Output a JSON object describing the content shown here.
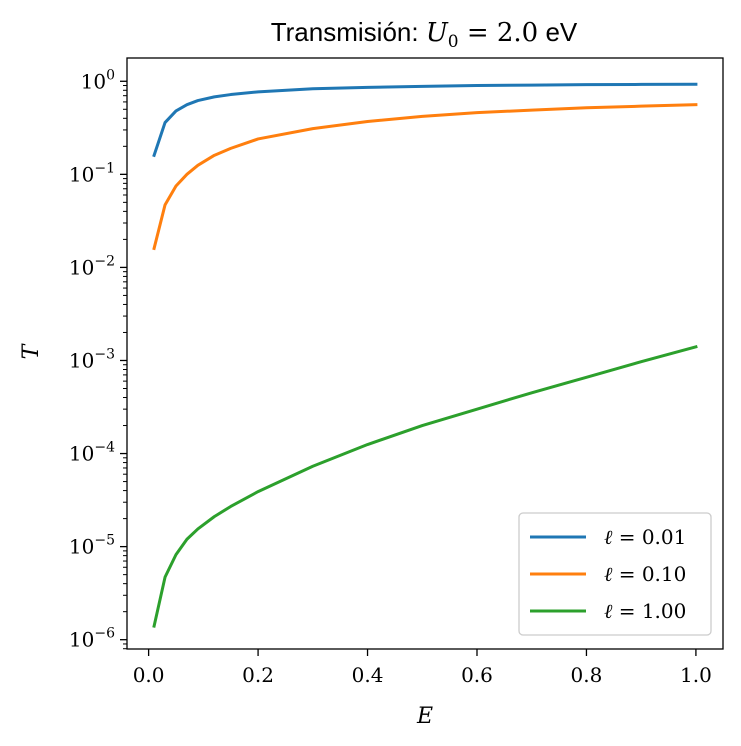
{
  "chart_data": {
    "type": "line",
    "title_prefix": "Transmisión: ",
    "title_symbol": "U",
    "title_subscript": "0",
    "title_value": " = 2.0",
    "title_suffix": " eV",
    "xlabel": "E",
    "ylabel": "T",
    "yscale": "log",
    "xlim": [
      -0.0395,
      1.0495
    ],
    "ylim_log10": [
      -6.1,
      0.25
    ],
    "x_ticks": [
      0.0,
      0.2,
      0.4,
      0.6,
      0.8,
      1.0
    ],
    "x_tick_labels": [
      "0.0",
      "0.2",
      "0.4",
      "0.6",
      "0.8",
      "1.0"
    ],
    "y_ticks_exp": [
      0,
      -1,
      -2,
      -3,
      -4,
      -5,
      -6
    ],
    "y_tick_base": "10",
    "y_tick_exponents": [
      "0",
      "−1",
      "−2",
      "−3",
      "−4",
      "−5",
      "−6"
    ],
    "grid": false,
    "legend_position": "bottom-right",
    "series": [
      {
        "name_symbol": "ℓ",
        "name_value": " = 0.01",
        "color": "#1f77b4",
        "x": [
          0.01,
          0.03,
          0.05,
          0.07,
          0.09,
          0.12,
          0.15,
          0.2,
          0.3,
          0.4,
          0.5,
          0.6,
          0.7,
          0.8,
          0.9,
          1.0
        ],
        "y": [
          0.16,
          0.36,
          0.48,
          0.56,
          0.62,
          0.68,
          0.72,
          0.77,
          0.83,
          0.86,
          0.88,
          0.9,
          0.91,
          0.92,
          0.925,
          0.93
        ]
      },
      {
        "name_symbol": "ℓ",
        "name_value": " = 0.10",
        "color": "#ff7f0e",
        "x": [
          0.01,
          0.03,
          0.05,
          0.07,
          0.09,
          0.12,
          0.15,
          0.2,
          0.3,
          0.4,
          0.5,
          0.6,
          0.7,
          0.8,
          0.9,
          1.0
        ],
        "y": [
          0.016,
          0.047,
          0.075,
          0.1,
          0.125,
          0.16,
          0.19,
          0.24,
          0.31,
          0.37,
          0.42,
          0.46,
          0.49,
          0.52,
          0.54,
          0.56
        ]
      },
      {
        "name_symbol": "ℓ",
        "name_value": " = 1.00",
        "color": "#2ca02c",
        "x": [
          0.01,
          0.03,
          0.05,
          0.07,
          0.09,
          0.12,
          0.15,
          0.2,
          0.3,
          0.4,
          0.5,
          0.6,
          0.7,
          0.8,
          0.9,
          1.0
        ],
        "y": [
          1.4e-06,
          4.7e-06,
          8.2e-06,
          1.2e-05,
          1.55e-05,
          2.1e-05,
          2.7e-05,
          3.9e-05,
          7.3e-05,
          0.000125,
          0.0002,
          0.0003,
          0.00045,
          0.00066,
          0.00097,
          0.0014
        ]
      }
    ]
  }
}
